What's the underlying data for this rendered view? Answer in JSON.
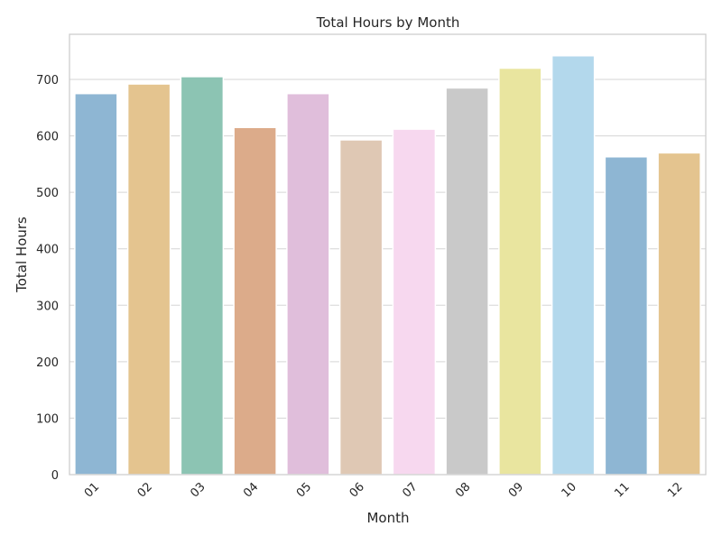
{
  "chart_data": {
    "type": "bar",
    "title": "Total Hours by Month",
    "xlabel": "Month",
    "ylabel": "Total Hours",
    "categories": [
      "01",
      "02",
      "03",
      "04",
      "05",
      "06",
      "07",
      "08",
      "09",
      "10",
      "11",
      "12"
    ],
    "values": [
      675,
      692,
      705,
      615,
      675,
      593,
      612,
      685,
      720,
      742,
      563,
      570
    ],
    "ylim": [
      0,
      780
    ],
    "yticks": [
      0,
      100,
      200,
      300,
      400,
      500,
      600,
      700
    ],
    "grid": true,
    "legend": "none",
    "bar_colors": [
      "#8eb6d3",
      "#e4c48f",
      "#8cc4b3",
      "#dcab8a",
      "#e0bedb",
      "#dfc8b4",
      "#f7d8ef",
      "#c9c9c9",
      "#e9e59f",
      "#b3d8ec",
      "#8eb6d3",
      "#e4c48f"
    ]
  }
}
